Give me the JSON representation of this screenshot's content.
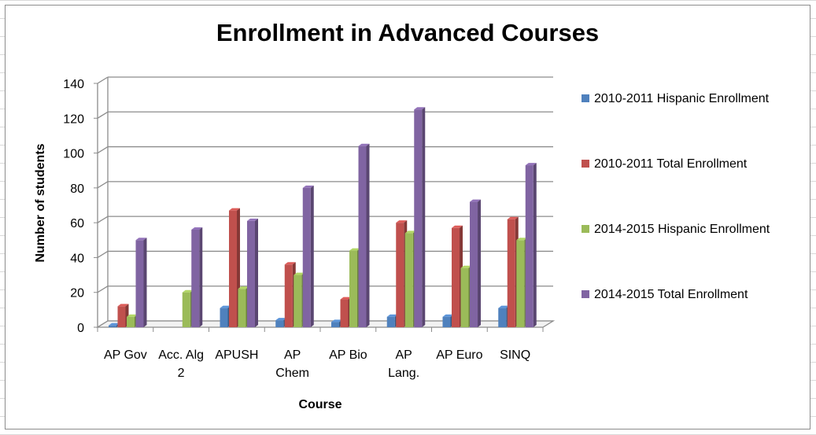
{
  "chart_data": {
    "type": "bar",
    "title": "Enrollment in Advanced Courses",
    "xlabel": "Course",
    "ylabel": "Number of students",
    "ylim": [
      0,
      140
    ],
    "yticks": [
      "0",
      "20",
      "40",
      "60",
      "80",
      "100",
      "120",
      "140"
    ],
    "grid": true,
    "legend_position": "right",
    "categories": [
      [
        "AP Gov"
      ],
      [
        "Acc. Alg",
        "2"
      ],
      [
        "APUSH"
      ],
      [
        "AP",
        "Chem"
      ],
      [
        "AP Bio"
      ],
      [
        "AP",
        "Lang."
      ],
      [
        "AP Euro"
      ],
      [
        "SINQ"
      ]
    ],
    "series": [
      {
        "name": "2010-2011 Hispanic Enrollment",
        "color": "#4f81bd",
        "values": [
          1,
          0,
          11,
          4,
          3,
          6,
          6,
          11
        ]
      },
      {
        "name": "2010-2011 Total Enrollment",
        "color": "#c0504d",
        "values": [
          12,
          0,
          67,
          36,
          16,
          60,
          57,
          62
        ]
      },
      {
        "name": "2014-2015 Hispanic Enrollment",
        "color": "#9bbb59",
        "values": [
          6,
          20,
          22,
          30,
          44,
          54,
          34,
          50
        ]
      },
      {
        "name": "2014-2015 Total Enrollment",
        "color": "#8064a2",
        "values": [
          50,
          56,
          61,
          80,
          104,
          125,
          72,
          93
        ]
      }
    ]
  }
}
